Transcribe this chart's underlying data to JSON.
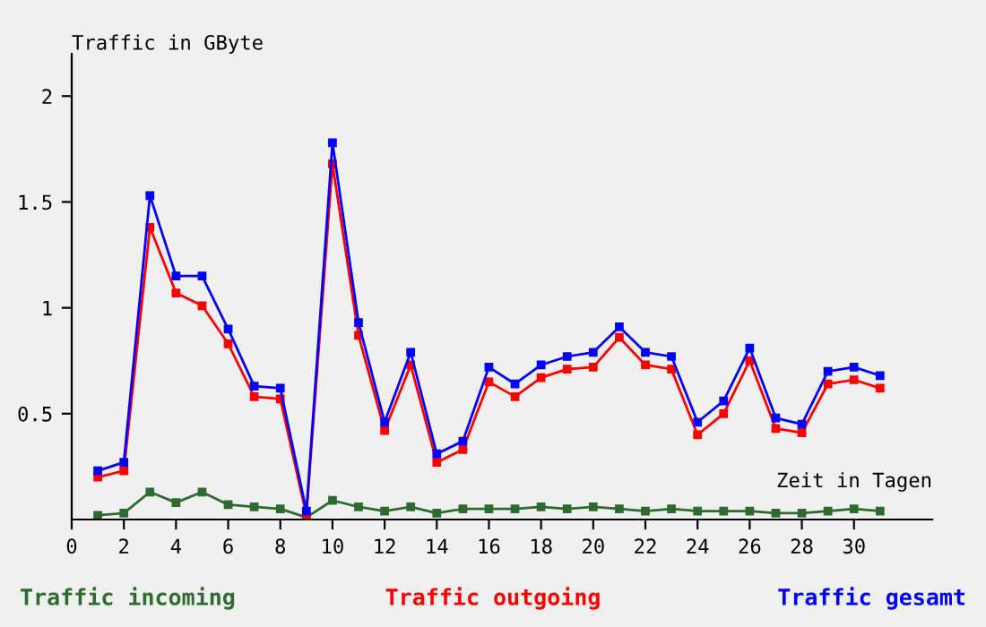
{
  "chart_data": {
    "type": "line",
    "xlabel": "Zeit in Tagen",
    "ylabel": "Traffic in GByte",
    "x": [
      1,
      2,
      3,
      4,
      5,
      6,
      7,
      8,
      9,
      10,
      11,
      12,
      13,
      14,
      15,
      16,
      17,
      18,
      19,
      20,
      21,
      22,
      23,
      24,
      25,
      26,
      27,
      28,
      29,
      30,
      31
    ],
    "xlim": [
      0,
      33
    ],
    "xticks": [
      0,
      2,
      4,
      6,
      8,
      10,
      12,
      14,
      16,
      18,
      20,
      22,
      24,
      26,
      28,
      30
    ],
    "ylim": [
      0,
      2.2
    ],
    "yticks": [
      0.5,
      1,
      1.5,
      2
    ],
    "grid": false,
    "legend": "bottom",
    "marker": "square",
    "line_style": "solid",
    "series": [
      {
        "name": "Traffic incoming",
        "color": "#2e6b2e",
        "values": [
          0.02,
          0.03,
          0.13,
          0.08,
          0.13,
          0.07,
          0.06,
          0.05,
          0.01,
          0.09,
          0.06,
          0.04,
          0.06,
          0.03,
          0.05,
          0.05,
          0.05,
          0.06,
          0.05,
          0.06,
          0.05,
          0.04,
          0.05,
          0.04,
          0.04,
          0.04,
          0.03,
          0.03,
          0.04,
          0.05,
          0.04
        ]
      },
      {
        "name": "Traffic outgoing",
        "color": "#ff0000",
        "values": [
          0.2,
          0.23,
          1.38,
          1.07,
          1.01,
          0.83,
          0.58,
          0.57,
          0.02,
          1.68,
          0.87,
          0.42,
          0.73,
          0.27,
          0.33,
          0.65,
          0.58,
          0.67,
          0.71,
          0.72,
          0.86,
          0.73,
          0.71,
          0.4,
          0.5,
          0.75,
          0.43,
          0.41,
          0.64,
          0.66,
          0.62
        ]
      },
      {
        "name": "Traffic gesamt",
        "color": "#0000ff",
        "values": [
          0.23,
          0.27,
          1.53,
          1.15,
          1.15,
          0.9,
          0.63,
          0.62,
          0.04,
          1.78,
          0.93,
          0.46,
          0.79,
          0.31,
          0.37,
          0.72,
          0.64,
          0.73,
          0.77,
          0.79,
          0.91,
          0.79,
          0.77,
          0.46,
          0.56,
          0.81,
          0.48,
          0.45,
          0.7,
          0.72,
          0.68
        ]
      }
    ]
  }
}
